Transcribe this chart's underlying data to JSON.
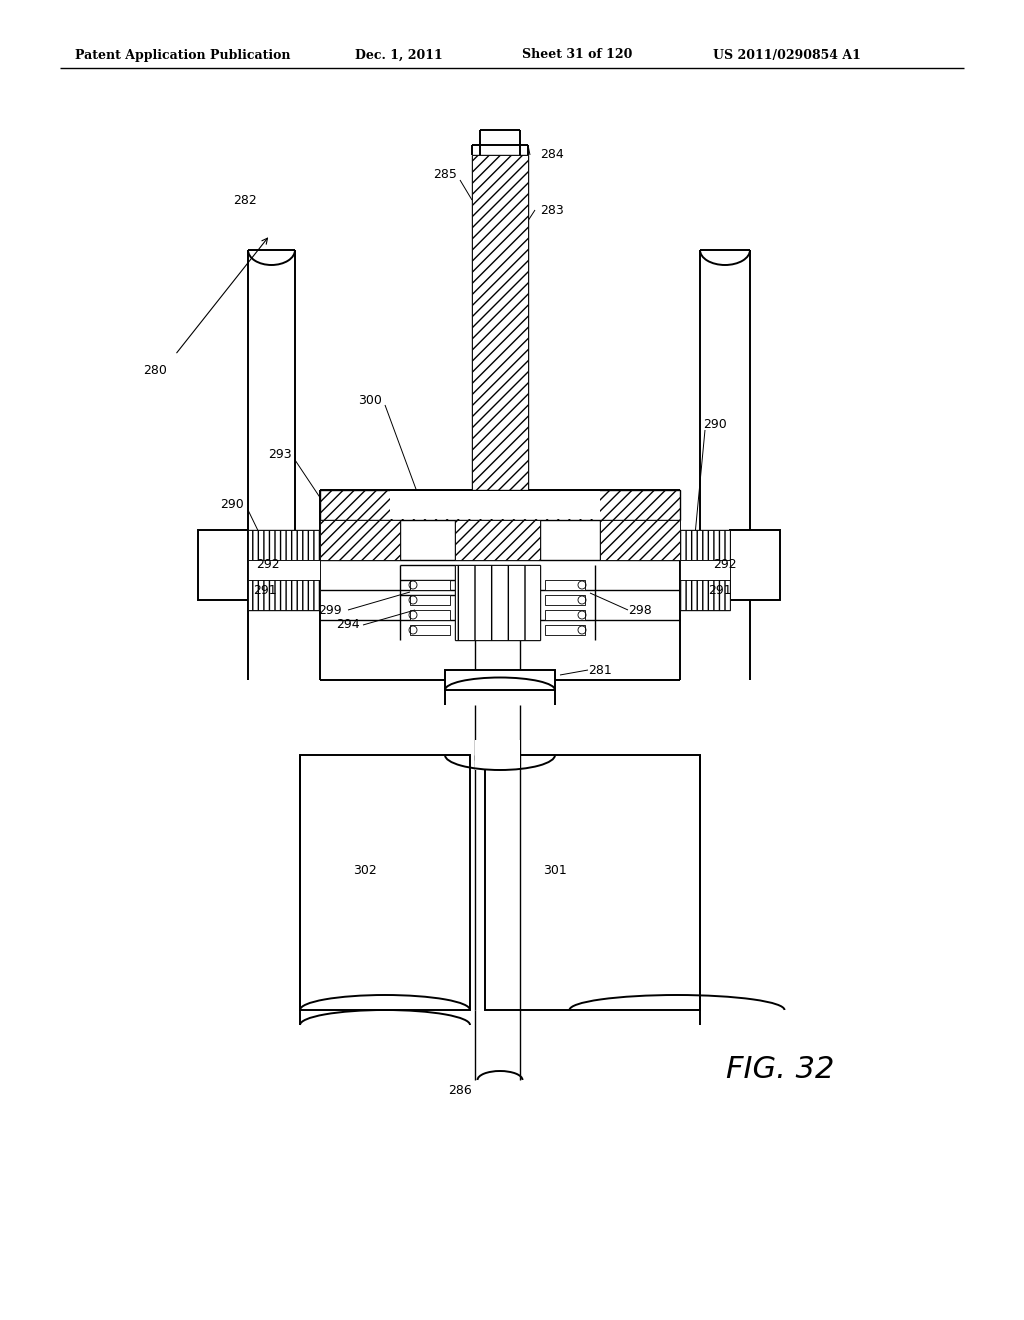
{
  "bg": "#ffffff",
  "lc": "#000000",
  "header_left": "Patent Application Publication",
  "header_mid": "Dec. 1, 2011",
  "header_sheet": "Sheet 31 of 120",
  "header_right": "US 2011/0290854 A1",
  "fig_label": "FIG. 32",
  "lw_main": 1.4,
  "lw_med": 1.0,
  "lw_thin": 0.6,
  "label_fs": 9
}
